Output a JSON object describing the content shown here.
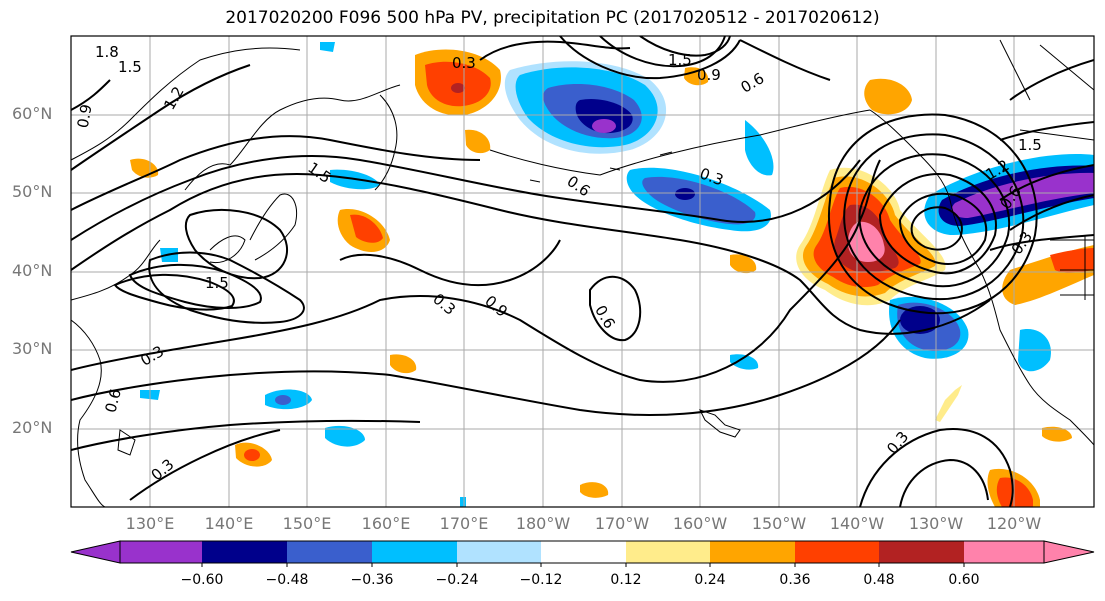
{
  "title": "2017020200 F096 500 hPa PV, precipitation PC (2017020512 - 2017020612)",
  "lat_labels": [
    "60°N",
    "50°N",
    "40°N",
    "30°N",
    "20°N"
  ],
  "lon_labels": [
    "130°E",
    "140°E",
    "150°E",
    "160°E",
    "170°E",
    "180°W",
    "170°W",
    "160°W",
    "150°W",
    "140°W",
    "130°W",
    "120°W"
  ],
  "colorbar": {
    "ticks": [
      "−0.60",
      "−0.48",
      "−0.36",
      "−0.24",
      "−0.12",
      "0.12",
      "0.24",
      "0.36",
      "0.48",
      "0.60"
    ],
    "colors": [
      "#9932cc",
      "#00008b",
      "#3a5fcd",
      "#00bfff",
      "#b0e2ff",
      "#ffffff",
      "#ffec8b",
      "#ffa500",
      "#ff4000",
      "#b22222",
      "#ff82ab"
    ]
  },
  "contour_labels": [
    {
      "text": "1.8"
    },
    {
      "text": "1.5"
    },
    {
      "text": "1.2"
    },
    {
      "text": "0.9"
    },
    {
      "text": "0.3"
    },
    {
      "text": "1.5"
    },
    {
      "text": "0.9"
    },
    {
      "text": "0.6"
    },
    {
      "text": "1.5"
    },
    {
      "text": "0.6"
    },
    {
      "text": "0.3"
    },
    {
      "text": "1.5"
    },
    {
      "text": "0.3"
    },
    {
      "text": "0.9"
    },
    {
      "text": "0.6"
    },
    {
      "text": "0.3"
    },
    {
      "text": "0.6"
    },
    {
      "text": "0.3"
    },
    {
      "text": "0.3"
    },
    {
      "text": "1.5"
    },
    {
      "text": "1.2"
    },
    {
      "text": "0.6"
    },
    {
      "text": "0.3"
    }
  ]
}
